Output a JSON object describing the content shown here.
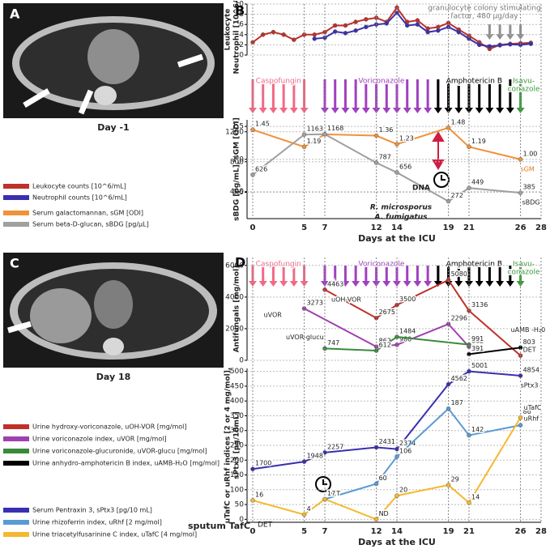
{
  "panel_labels": [
    "A",
    "B",
    "C",
    "D"
  ],
  "images": [
    {
      "caption": "Day -1"
    },
    {
      "caption": "Day 18"
    }
  ],
  "legends": [
    [
      {
        "label": "Leukocyte counts [10^6/mL]",
        "color": "#c0302a"
      },
      {
        "label": "Neutrophil counts [10^6/mL]",
        "color": "#3a2fb0"
      },
      {
        "label": "Serum galactomannan, sGM [ODI]",
        "color": "#f0923a"
      },
      {
        "label": "Serum beta-D-glucan, sBDG [pg/µL]",
        "color": "#a0a0a0"
      }
    ],
    [
      {
        "label": "Urine hydroxy-voriconazole, uOH-VOR [mg/mol]",
        "color": "#c0302a"
      },
      {
        "label": "Urine voriconazole index, uVOR [mg/mol]",
        "color": "#a040b0"
      },
      {
        "label": "Urine voriconazole-glucuronide, uVOR-glucu [mg/mol]",
        "color": "#3a8a3a"
      },
      {
        "label": "Urine anhydro-amphotericin B index, uAMB-H₂O [mg/mol]",
        "color": "#000000"
      }
    ],
    [
      {
        "label": "Serum Pentraxin 3, sPtx3 [pg/10 mL]",
        "color": "#3a2fb0"
      },
      {
        "label": "Urine rhizoferrin index, uRhf [2 mg/mol]",
        "color": "#5a9bd4"
      },
      {
        "label": "Urine triacetylfusarinine C index, uTafC [4 mg/mol]",
        "color": "#f5b82e"
      }
    ]
  ],
  "treatments": [
    {
      "name": [
        "Caspofungin"
      ],
      "color": "#f06a86",
      "days": [
        0,
        1,
        2,
        3,
        4,
        5
      ]
    },
    {
      "name": [
        "Voriconazole"
      ],
      "color": "#a040c0",
      "days": [
        7,
        8,
        9,
        10,
        11,
        12,
        13,
        14,
        15,
        16,
        17,
        18
      ]
    },
    {
      "name": [
        "Amphotericin B"
      ],
      "color": "#000000",
      "days": [
        18,
        19,
        20,
        21,
        22,
        23,
        24,
        25
      ]
    },
    {
      "name": [
        "Isavu-",
        "conazole"
      ],
      "color": "#3a9a3a",
      "days": [
        26
      ]
    }
  ],
  "gcsf": {
    "text": [
      "granulocyte colony stimulating",
      "factor, 480 µg/day"
    ],
    "color": "#909090",
    "days": [
      23,
      24,
      25,
      26
    ]
  },
  "chart_data": [
    {
      "type": "line",
      "ylabel": [
        "Leukocyte",
        "Neutrophil [10^6/mL]"
      ],
      "xlim": [
        0,
        28
      ],
      "ylim": [
        0,
        10
      ],
      "yticks": [
        0,
        2,
        4,
        6,
        8,
        10
      ],
      "grid": true,
      "series": [
        {
          "color": "#c0302a",
          "x": [
            0,
            1,
            2,
            3,
            4,
            5,
            6,
            7,
            8,
            9,
            10,
            11,
            12,
            13,
            14,
            15,
            16,
            17,
            18,
            19,
            20,
            21,
            22,
            23,
            24,
            25,
            26,
            27
          ],
          "values": [
            2.5,
            4,
            4.5,
            4,
            3,
            4,
            4,
            4.5,
            5.8,
            5.8,
            6.5,
            7,
            7.3,
            6.5,
            9.3,
            6.5,
            6.8,
            5.2,
            5.5,
            6.3,
            5,
            3.8,
            2.5,
            1.2,
            2,
            2.2,
            2.3,
            2.4
          ]
        },
        {
          "color": "#3a2fb0",
          "x": [
            6,
            7,
            8,
            9,
            10,
            11,
            12,
            13,
            14,
            15,
            16,
            17,
            18,
            19,
            20,
            21,
            22,
            23,
            24,
            25,
            26,
            27
          ],
          "values": [
            3.2,
            3.4,
            4.6,
            4.3,
            4.8,
            5.5,
            6,
            6.2,
            8.3,
            5.8,
            6,
            4.5,
            4.8,
            5.5,
            4.5,
            3.2,
            2,
            1.7,
            1.9,
            2.1,
            2,
            2.2
          ]
        }
      ]
    },
    {
      "type": "line",
      "ylabel": [
        "sBDG [pg/mL], sGM [ODI]"
      ],
      "xlabel": "Days at the ICU",
      "xlim": [
        0,
        28
      ],
      "xticks": [
        0,
        5,
        7,
        12,
        14,
        19,
        21,
        26,
        28
      ],
      "ylim": [
        0.1,
        1.6
      ],
      "yticks": [
        0.5,
        {
          "value": 1,
          "label": "1.0"
        },
        1.5
      ],
      "y2lim": [
        40,
        1360
      ],
      "y2ticks": [
        400,
        800,
        1200
      ],
      "grid": true,
      "series": [
        {
          "name": "sGM",
          "color": "#f0923a",
          "x": [
            0,
            5,
            7,
            12,
            14,
            19,
            21,
            26
          ],
          "values": [
            1.45,
            1.19,
            1.38,
            1.36,
            1.23,
            1.48,
            1.19,
            1.0
          ],
          "value_labels": [
            "1.45",
            "1.19",
            "1.38",
            "1.36",
            "1.23",
            "1.48",
            "1.19",
            "1.00"
          ]
        },
        {
          "name": "sBDG",
          "axis": "y2",
          "color": "#a0a0a0",
          "x": [
            0,
            5,
            7,
            12,
            14,
            19,
            21,
            26
          ],
          "values": [
            626,
            1163,
            1168,
            787,
            656,
            272,
            449,
            385
          ]
        }
      ],
      "annotations": [
        "DNA",
        "R. microsporus",
        "A. fumigatus"
      ]
    },
    {
      "type": "line",
      "ylabel": [
        "Antifungals [mg/mol]"
      ],
      "xlim": [
        0,
        28
      ],
      "ylim": [
        0,
        6500
      ],
      "yticks": [
        0,
        2000,
        4000,
        6000
      ],
      "grid": true,
      "series": [
        {
          "name": "uOH-VOR",
          "color": "#c0302a",
          "x": [
            7,
            12,
            14,
            19,
            21,
            26
          ],
          "values": [
            4463,
            2675,
            3500,
            5080,
            3136,
            300
          ],
          "value_labels": [
            "4463",
            "2675",
            "3500",
            "5080",
            "3136",
            "DET"
          ]
        },
        {
          "name": "uVOR",
          "color": "#a040b0",
          "x": [
            5,
            12,
            14,
            19,
            21
          ],
          "values": [
            3273,
            862,
            980,
            2296,
            862
          ]
        },
        {
          "name": "uVOR-glucu",
          "color": "#3a8a3a",
          "x": [
            7,
            12,
            14,
            21
          ],
          "values": [
            747,
            612,
            1484,
            991
          ]
        },
        {
          "name": "uAMB -H₂0",
          "color": "#000000",
          "x": [
            21,
            26
          ],
          "values": [
            391,
            803
          ]
        }
      ]
    },
    {
      "type": "line",
      "ylabel": [
        "uTafC or uRhf indices [2 or 4 mg/mol],",
        "sPtx3 [pg/10mL]"
      ],
      "xlabel": "Days at the ICU",
      "xlim": [
        0,
        28
      ],
      "xticks": [
        0,
        5,
        7,
        12,
        14,
        19,
        21,
        26,
        28
      ],
      "ylim": [
        -10,
        510
      ],
      "yticks": [
        0,
        50,
        100,
        150,
        200,
        250,
        300,
        350,
        400,
        450,
        500
      ],
      "grid": true,
      "series": [
        {
          "name": "sPtx3",
          "color": "#3a2fb0",
          "x": [
            0,
            5,
            7,
            12,
            14,
            19,
            21,
            26
          ],
          "values": [
            170,
            194.8,
            225.7,
            243.1,
            237.4,
            456.2,
            500.1,
            485.4
          ],
          "value_labels": [
            "1700",
            "1948",
            "2257",
            "2431",
            "2374",
            "4562",
            "5001",
            "4854"
          ]
        },
        {
          "name": "uRhf",
          "color": "#5a9bd4",
          "x": [
            7,
            12,
            14,
            19,
            21,
            26
          ],
          "values": [
            68,
            120,
            212,
            374,
            284,
            318
          ],
          "value_labels": [
            "DET",
            "60",
            "106",
            "187",
            "142",
            "159"
          ]
        },
        {
          "name": "uTafC",
          "color": "#f5b82e",
          "x": [
            0,
            5,
            7,
            12,
            14,
            19,
            21,
            26
          ],
          "values": [
            64,
            16,
            68,
            0,
            80,
            116,
            56,
            344
          ],
          "value_labels": [
            "16",
            "4",
            "17",
            "ND",
            "20",
            "29",
            "14",
            "86"
          ]
        }
      ],
      "annotations": [
        "sputum TafC",
        "DET"
      ]
    }
  ]
}
